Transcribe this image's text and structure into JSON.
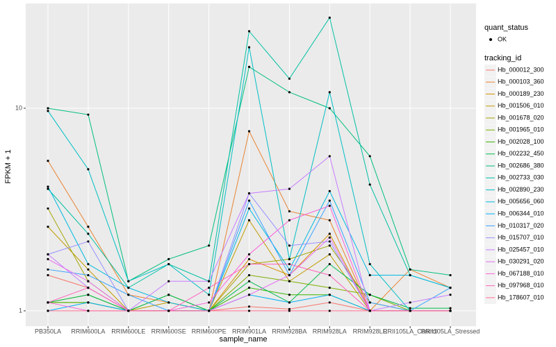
{
  "chart_data": {
    "type": "line",
    "x_label": "sample_name",
    "y_label": "FPKM + 1",
    "categories": [
      "PB350LA",
      "RRIM600LA",
      "RRIM600LE",
      "RRIM600SE",
      "RRIM600PE",
      "RRIM901LA",
      "RRIM928BA",
      "RRIM928LA",
      "RRIM928LE",
      "RRII105LA_Control",
      "RRII105LA_Stressed"
    ],
    "ylim": [
      0.84,
      32.9
    ],
    "yticks": [
      1,
      10
    ],
    "log_y": true,
    "grid": true,
    "shape_legend": {
      "title": "quant_status",
      "labels": [
        "OK"
      ]
    },
    "color_legend_title": "tracking_id",
    "series": [
      {
        "name": "Hb_000012_300",
        "color": "#F8766D",
        "values": [
          1.5,
          1.3,
          1.0,
          1.0,
          1.0,
          1.05,
          1.02,
          1.1,
          1.0,
          1.0,
          1.0
        ]
      },
      {
        "name": "Hb_000103_360",
        "color": "#EA8331",
        "values": [
          5.5,
          2.6,
          1.2,
          1.1,
          1.0,
          7.7,
          3.1,
          2.8,
          1.0,
          1.6,
          1.3
        ]
      },
      {
        "name": "Hb_000189_230",
        "color": "#D89000",
        "values": [
          1.1,
          1.1,
          1.0,
          1.0,
          1.0,
          1.8,
          1.5,
          2.4,
          1.0,
          1.0,
          1.0
        ]
      },
      {
        "name": "Hb_001506_010",
        "color": "#C09B00",
        "values": [
          2.6,
          1.6,
          1.0,
          1.1,
          1.0,
          2.8,
          1.4,
          1.9,
          1.0,
          1.0,
          1.0
        ]
      },
      {
        "name": "Hb_001678_020",
        "color": "#A3A500",
        "values": [
          3.2,
          1.4,
          1.0,
          1.0,
          1.0,
          1.7,
          1.8,
          2.1,
          1.1,
          1.0,
          1.0
        ]
      },
      {
        "name": "Hb_001965_010",
        "color": "#7CAE00",
        "values": [
          1.1,
          1.2,
          1.0,
          1.2,
          1.0,
          1.5,
          1.4,
          1.3,
          1.2,
          1.0,
          1.0
        ]
      },
      {
        "name": "Hb_002028_100",
        "color": "#39B600",
        "values": [
          1.1,
          1.1,
          1.0,
          1.0,
          1.0,
          1.3,
          1.2,
          1.2,
          1.0,
          1.0,
          1.0
        ]
      },
      {
        "name": "Hb_002232_450",
        "color": "#00BB4E",
        "values": [
          1.1,
          1.2,
          1.0,
          1.2,
          1.0,
          1.4,
          1.1,
          1.7,
          1.2,
          1.03,
          1.03
        ]
      },
      {
        "name": "Hb_002686_380",
        "color": "#00BF7D",
        "values": [
          10,
          9.3,
          1.4,
          1.8,
          2.1,
          16,
          12,
          10,
          5.8,
          1.6,
          1.5
        ]
      },
      {
        "name": "Hb_002733_030",
        "color": "#00C1A3",
        "values": [
          4.0,
          2.4,
          1.3,
          1.7,
          1.4,
          24,
          14,
          28,
          4.2,
          1.5,
          1.3
        ]
      },
      {
        "name": "Hb_002890_230",
        "color": "#00BFC4",
        "values": [
          9.7,
          5.0,
          1.4,
          1.7,
          1.2,
          20,
          1.8,
          12,
          1.7,
          1.0,
          1.0
        ]
      },
      {
        "name": "Hb_005656_060",
        "color": "#00BAE0",
        "values": [
          4.1,
          1.7,
          1.3,
          1.1,
          1.0,
          3.2,
          1.6,
          3.9,
          1.5,
          1.5,
          1.3
        ]
      },
      {
        "name": "Hb_006344_010",
        "color": "#00B0F6",
        "values": [
          1.0,
          1.1,
          1.0,
          1.0,
          1.0,
          1.2,
          1.1,
          1.2,
          1.0,
          1.0,
          1.0
        ]
      },
      {
        "name": "Hb_010317_020",
        "color": "#35A2FF",
        "values": [
          1.6,
          1.5,
          1.2,
          1.0,
          1.0,
          3.5,
          1.5,
          3.5,
          1.1,
          1.0,
          1.3
        ]
      },
      {
        "name": "Hb_015707_010",
        "color": "#9590FF",
        "values": [
          1.9,
          2.2,
          1.0,
          1.0,
          1.0,
          3.8,
          2.1,
          2.2,
          1.0,
          1.0,
          1.0
        ]
      },
      {
        "name": "Hb_025457_010",
        "color": "#C77CFF",
        "values": [
          1.9,
          1.3,
          1.0,
          1.4,
          1.4,
          3.8,
          4.0,
          5.8,
          1.0,
          1.1,
          1.2
        ]
      },
      {
        "name": "Hb_030291_020",
        "color": "#E76BF3",
        "values": [
          1.8,
          1.4,
          1.0,
          1.0,
          1.0,
          1.2,
          1.5,
          2.3,
          1.0,
          1.0,
          1.0
        ]
      },
      {
        "name": "Hb_067188_010",
        "color": "#FA62DB",
        "values": [
          1.1,
          1.0,
          1.0,
          1.0,
          1.1,
          1.9,
          2.8,
          3.3,
          1.0,
          1.0,
          1.0
        ]
      },
      {
        "name": "Hb_097968_010",
        "color": "#FF62BC",
        "values": [
          1.1,
          1.3,
          1.0,
          1.0,
          1.3,
          1.7,
          1.7,
          1.5,
          1.0,
          1.0,
          1.0
        ]
      },
      {
        "name": "Hb_178607_010",
        "color": "#FF6C91",
        "values": [
          1.0,
          1.0,
          1.0,
          1.0,
          1.0,
          1.0,
          1.0,
          1.0,
          1.0,
          1.0,
          1.0
        ]
      }
    ]
  }
}
